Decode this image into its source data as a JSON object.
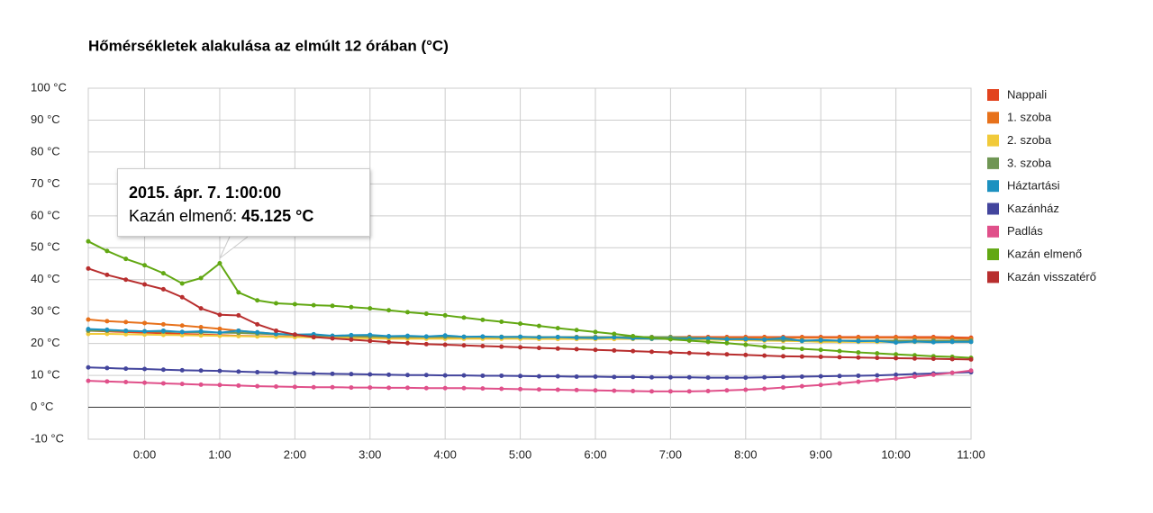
{
  "chart_data": {
    "type": "line",
    "title": "Hőmérsékletek alakulása az elmúlt 12 órában (°C)",
    "x": [
      -0.75,
      -0.5,
      -0.25,
      0,
      0.25,
      0.5,
      0.75,
      1,
      1.25,
      1.5,
      1.75,
      2,
      2.25,
      2.5,
      2.75,
      3,
      3.25,
      3.5,
      3.75,
      4,
      4.25,
      4.5,
      4.75,
      5,
      5.25,
      5.5,
      5.75,
      6,
      6.25,
      6.5,
      6.75,
      7,
      7.25,
      7.5,
      7.75,
      8,
      8.25,
      8.5,
      8.75,
      9,
      9.25,
      9.5,
      9.75,
      10,
      10.25,
      10.5,
      10.75,
      11
    ],
    "xlim": [
      -0.75,
      11
    ],
    "xticks": [
      {
        "value": 0,
        "label": "0:00"
      },
      {
        "value": 1,
        "label": "1:00"
      },
      {
        "value": 2,
        "label": "2:00"
      },
      {
        "value": 3,
        "label": "3:00"
      },
      {
        "value": 4,
        "label": "4:00"
      },
      {
        "value": 5,
        "label": "5:00"
      },
      {
        "value": 6,
        "label": "6:00"
      },
      {
        "value": 7,
        "label": "7:00"
      },
      {
        "value": 8,
        "label": "8:00"
      },
      {
        "value": 9,
        "label": "9:00"
      },
      {
        "value": 10,
        "label": "10:00"
      },
      {
        "value": 11,
        "label": "11:00"
      }
    ],
    "ylim": [
      -10,
      100
    ],
    "yticks": [
      {
        "value": -10,
        "label": "-10 °C"
      },
      {
        "value": 0,
        "label": "0 °C"
      },
      {
        "value": 10,
        "label": "10 °C"
      },
      {
        "value": 20,
        "label": "20 °C"
      },
      {
        "value": 30,
        "label": "30 °C"
      },
      {
        "value": 40,
        "label": "40 °C"
      },
      {
        "value": 50,
        "label": "50 °C"
      },
      {
        "value": 60,
        "label": "60 °C"
      },
      {
        "value": 70,
        "label": "70 °C"
      },
      {
        "value": 80,
        "label": "80 °C"
      },
      {
        "value": 90,
        "label": "90 °C"
      },
      {
        "value": 100,
        "label": "100 °C"
      }
    ],
    "grid": true,
    "legend": "right",
    "series": [
      {
        "name": "Nappali",
        "color": "#e2431e",
        "values": [
          24,
          23.8,
          23.6,
          23.4,
          23.2,
          23,
          22.8,
          22.6,
          22.4,
          22.3,
          22.2,
          22.1,
          22,
          22,
          22,
          22,
          22,
          22,
          22,
          22,
          22,
          22,
          22,
          22,
          22,
          22,
          22,
          22,
          22,
          22,
          22,
          22,
          22,
          22,
          22,
          22,
          22,
          22,
          22,
          22,
          22,
          22,
          22,
          22,
          22,
          22,
          21.9,
          21.8
        ]
      },
      {
        "name": "1. szoba",
        "color": "#e7711b",
        "values": [
          27.5,
          27,
          26.7,
          26.4,
          26,
          25.6,
          25.1,
          24.6,
          24,
          23.5,
          23,
          22.6,
          22.3,
          22.1,
          22,
          21.9,
          21.8,
          21.8,
          21.8,
          21.8,
          21.8,
          21.8,
          21.8,
          21.8,
          21.8,
          21.8,
          21.8,
          21.8,
          21.8,
          21.8,
          21.8,
          21.8,
          21.8,
          21.8,
          21.8,
          21.8,
          21.8,
          21.8,
          21.8,
          21.8,
          21.8,
          21.8,
          21.8,
          21.8,
          21.7,
          21.7,
          21.6,
          21.5
        ]
      },
      {
        "name": "2. szoba",
        "color": "#f1ca3a",
        "values": [
          23,
          23,
          22.9,
          22.8,
          22.7,
          22.6,
          22.5,
          22.4,
          22.3,
          22.2,
          22.1,
          22,
          21.9,
          21.8,
          21.7,
          21.6,
          21.5,
          21.5,
          21.5,
          21.5,
          21.5,
          21.5,
          21.5,
          21.5,
          21.4,
          21.4,
          21.4,
          21.4,
          21.4,
          21.4,
          21.4,
          21.4,
          21.3,
          21.2,
          21.1,
          21,
          20.9,
          20.8,
          20.7,
          20.5,
          20.5,
          20.5,
          20.5,
          20.5,
          20.5,
          20.5,
          20.5,
          20.5
        ]
      },
      {
        "name": "3. szoba",
        "color": "#6f9654",
        "values": [
          24,
          24,
          23.9,
          23.8,
          23.7,
          23.6,
          23.5,
          23.4,
          23.3,
          23.1,
          22.9,
          22.7,
          22.5,
          22.4,
          22.3,
          22.2,
          22.1,
          22.1,
          22.1,
          22.1,
          22.1,
          22.1,
          22.1,
          22.1,
          22,
          22,
          22,
          22,
          22,
          22,
          22,
          22,
          21.8,
          21.6,
          21.4,
          21.3,
          21.2,
          21.1,
          21,
          20.9,
          20.9,
          20.9,
          20.9,
          20.9,
          20.9,
          20.9,
          20.9,
          20.9
        ]
      },
      {
        "name": "Háztartási",
        "color": "#1c91c0",
        "values": [
          24.5,
          24.3,
          24,
          23.8,
          24,
          23.6,
          23.8,
          23.4,
          24,
          23.5,
          23,
          22.8,
          22.9,
          22.4,
          22.6,
          22.7,
          22.3,
          22.4,
          22.2,
          22.5,
          22.1,
          22.2,
          22,
          22.1,
          21.9,
          22,
          21.8,
          21.7,
          21.9,
          21.6,
          21.5,
          21.5,
          21.4,
          21.6,
          21.3,
          21.4,
          21.2,
          21.7,
          20.8,
          21.1,
          20.9,
          20.7,
          20.8,
          20.3,
          20.6,
          20.4,
          20.5,
          20.5
        ]
      },
      {
        "name": "Kazánház",
        "color": "#43459d",
        "values": [
          12.5,
          12.3,
          12.1,
          12,
          11.8,
          11.6,
          11.5,
          11.4,
          11.2,
          11,
          10.9,
          10.7,
          10.6,
          10.5,
          10.4,
          10.3,
          10.2,
          10.1,
          10.1,
          10,
          10,
          9.9,
          9.9,
          9.8,
          9.7,
          9.7,
          9.6,
          9.6,
          9.5,
          9.5,
          9.4,
          9.4,
          9.4,
          9.3,
          9.3,
          9.3,
          9.4,
          9.5,
          9.6,
          9.7,
          9.8,
          9.9,
          10,
          10.2,
          10.4,
          10.6,
          10.8,
          11
        ]
      },
      {
        "name": "Padlás",
        "color": "#e0508a",
        "values": [
          8.3,
          8.1,
          7.9,
          7.7,
          7.5,
          7.3,
          7.1,
          7,
          6.8,
          6.6,
          6.5,
          6.4,
          6.3,
          6.3,
          6.2,
          6.2,
          6.1,
          6.1,
          6,
          6,
          6,
          5.9,
          5.8,
          5.7,
          5.6,
          5.5,
          5.4,
          5.3,
          5.2,
          5.1,
          5,
          5,
          5,
          5.1,
          5.3,
          5.5,
          5.8,
          6.2,
          6.6,
          7,
          7.5,
          8,
          8.5,
          9,
          9.6,
          10.2,
          10.8,
          11.5
        ]
      },
      {
        "name": "Kazán elmenő",
        "color": "#62a813",
        "values": [
          52,
          49,
          46.5,
          44.5,
          42,
          38.8,
          40.5,
          45.125,
          36,
          33.5,
          32.6,
          32.3,
          32,
          31.8,
          31.4,
          31,
          30.4,
          29.8,
          29.3,
          28.8,
          28.1,
          27.4,
          26.8,
          26.2,
          25.5,
          24.8,
          24.2,
          23.6,
          23,
          22.3,
          21.8,
          21.3,
          20.9,
          20.5,
          20.1,
          19.6,
          19,
          18.6,
          18.3,
          18,
          17.6,
          17.2,
          16.9,
          16.6,
          16.3,
          16,
          15.8,
          15.5
        ]
      },
      {
        "name": "Kazán visszatérő",
        "color": "#b82e2e",
        "values": [
          43.5,
          41.5,
          40,
          38.5,
          37,
          34.5,
          31,
          29,
          28.8,
          26,
          24,
          22.8,
          22,
          21.6,
          21.2,
          20.8,
          20.4,
          20.1,
          19.8,
          19.6,
          19.4,
          19.2,
          19,
          18.8,
          18.6,
          18.4,
          18.2,
          18,
          17.8,
          17.6,
          17.4,
          17.2,
          17,
          16.8,
          16.6,
          16.4,
          16.2,
          16,
          15.9,
          15.8,
          15.7,
          15.6,
          15.5,
          15.4,
          15.3,
          15.2,
          15.1,
          15
        ]
      }
    ],
    "tooltip": {
      "date": "2015. ápr. 7. 1:00:00",
      "series": "Kazán elmenő:",
      "value_label": "45.125 °C"
    }
  }
}
